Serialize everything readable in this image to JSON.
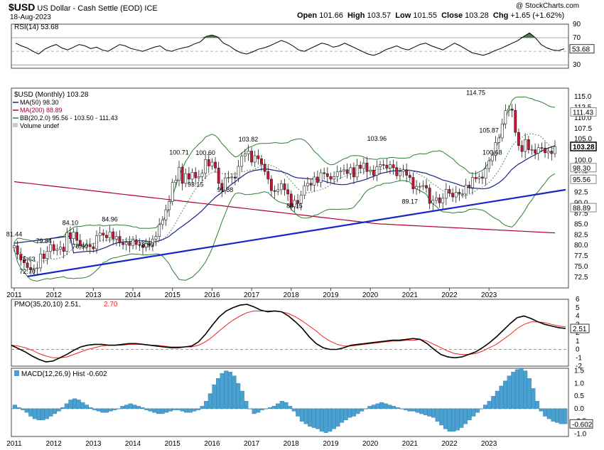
{
  "header": {
    "symbol": "$USD",
    "name": "US Dollar - Cash Settle (EOD)",
    "exchange": "ICE",
    "date": "18-Aug-2023",
    "open_label": "Open",
    "open": "101.66",
    "high_label": "High",
    "high": "103.57",
    "low_label": "Low",
    "low": "101.55",
    "close_label": "Close",
    "close": "103.28",
    "chg_label": "Chg",
    "chg": "+1.65 (+1.62%)",
    "watermark": "@ StockCharts.com"
  },
  "colors": {
    "up_candle": "#ffffff",
    "down_candle": "#cc1133",
    "ma50": "#1a237e",
    "ma200": "#b0002a",
    "bb": "#2e7d32",
    "trendline": "#1525c8",
    "rsi_fill": "#4f7a4f",
    "pmo": "#000000",
    "pmo_signal": "#ee2222",
    "hist": "#4aa0d0"
  },
  "chart_data": [
    {
      "panel": "rsi",
      "type": "line",
      "legend": "RSI(14) 53.68",
      "last_value": "53.68",
      "ylim": [
        25,
        90
      ],
      "reference_lines": [
        30,
        70
      ],
      "y_ticks": [
        "90",
        "70",
        "50",
        "30"
      ],
      "series": [
        {
          "values": [
            62,
            58,
            55,
            50,
            46,
            53,
            57,
            60,
            55,
            52,
            56,
            60,
            58,
            54,
            56,
            52,
            50,
            55,
            60,
            58,
            54,
            52,
            50,
            53,
            56,
            58,
            52,
            50,
            53,
            55,
            57,
            61,
            64,
            72,
            74,
            71,
            62,
            58,
            52,
            48,
            46,
            49,
            53,
            55,
            58,
            62,
            66,
            63,
            58,
            52,
            50,
            54,
            58,
            62,
            60,
            56,
            58,
            62,
            58,
            54,
            50,
            46,
            44,
            47,
            52,
            55,
            58,
            54,
            52,
            56,
            60,
            62,
            58,
            55,
            52,
            57,
            62,
            58,
            53,
            48,
            46,
            44,
            47,
            51,
            54,
            58,
            62,
            66,
            72,
            77,
            70,
            60,
            55,
            52,
            51,
            53.68
          ]
        }
      ]
    },
    {
      "panel": "price",
      "type": "candlestick",
      "legend": [
        "$USD (Monthly) 103.28",
        "MA(50) 98.30",
        "MA(200) 88.89",
        "BB(20,2.0) 95.56 - 103.50 - 111.43",
        "Volume undef"
      ],
      "x_labels": [
        "2011",
        "2012",
        "2013",
        "2014",
        "2015",
        "2016",
        "2017",
        "2018",
        "2019",
        "2020",
        "2021",
        "2022",
        "2023"
      ],
      "ylim": [
        70,
        117
      ],
      "y_ticks": [
        "115.0",
        "112.5",
        "110.0",
        "107.5",
        "105.0",
        "100.0",
        "97.5",
        "92.5",
        "90.0",
        "87.5",
        "85.0",
        "82.5",
        "80.0",
        "77.5",
        "75.0",
        "72.5"
      ],
      "close": [
        79.9,
        77.9,
        76.6,
        75.9,
        74.8,
        74.3,
        74.6,
        74.7,
        78.0,
        76.9,
        78.6,
        80.2,
        78.8,
        79.1,
        79.6,
        78.6,
        83.0,
        81.6,
        83.1,
        81.2,
        79.9,
        79.9,
        80.2,
        79.7,
        79.2,
        82.3,
        82.9,
        82.4,
        81.8,
        83.2,
        81.5,
        82.1,
        80.6,
        80.2,
        80.7,
        80.0,
        81.3,
        80.2,
        80.1,
        79.5,
        80.4,
        80.0,
        81.5,
        82.1,
        84.9,
        86.0,
        88.4,
        90.3,
        94.8,
        95.3,
        98.4,
        94.6,
        96.9,
        95.6,
        97.2,
        95.9,
        96.2,
        97.0,
        100.2,
        98.7,
        99.6,
        98.2,
        94.6,
        93.0,
        95.9,
        96.0,
        96.1,
        95.8,
        98.6,
        101.0,
        101.5,
        102.2,
        99.6,
        101.1,
        100.4,
        99.1,
        97.4,
        95.6,
        92.9,
        92.7,
        93.1,
        94.5,
        93.1,
        92.1,
        89.1,
        90.6,
        89.9,
        91.8,
        94.0,
        94.6,
        94.2,
        96.1,
        94.8,
        97.1,
        96.9,
        96.2,
        95.6,
        96.2,
        97.3,
        97.5,
        97.8,
        96.9,
        98.3,
        96.1,
        98.9,
        98.1,
        99.4,
        97.4,
        97.7,
        96.5,
        98.5,
        99.0,
        98.9,
        98.2,
        99.0,
        98.3,
        96.4,
        97.4,
        97.8,
        96.5,
        96.0,
        93.3,
        93.9,
        93.9,
        94.1,
        93.5,
        89.9,
        90.6,
        91.2,
        90.0,
        91.1,
        93.2,
        92.3,
        91.4,
        92.5,
        92.1,
        92.1,
        94.2,
        93.6,
        96.0,
        95.7,
        96.1,
        95.8,
        98.1,
        99.9,
        101.2,
        104.2,
        105.3,
        108.6,
        111.7,
        112.1,
        111.8,
        106.6,
        103.5,
        102.1,
        104.9,
        102.5,
        102.5,
        101.7,
        103.0,
        102.9,
        101.8,
        102.2,
        101.6,
        103.28
      ],
      "candles_note": "monthly OHLC; highs/lows span roughly ±1.5 around open/close",
      "annotations": [
        {
          "label": "81.44",
          "x": "2011-01",
          "y": 81.44
        },
        {
          "label": "75.63",
          "x": "2011-05",
          "y": 75.63
        },
        {
          "label": "72.70",
          "x": "2011-05",
          "y": 72.7
        },
        {
          "label": "79.84",
          "x": "2011-10",
          "y": 79.84
        },
        {
          "label": "84.10",
          "x": "2012-06",
          "y": 84.1
        },
        {
          "label": "78.60",
          "x": "2012-09",
          "y": 78.6
        },
        {
          "label": "84.96",
          "x": "2013-06",
          "y": 84.96
        },
        {
          "label": "78.93",
          "x": "2014-05",
          "y": 78.93
        },
        {
          "label": "100.71",
          "x": "2015-03",
          "y": 100.71
        },
        {
          "label": "93.15",
          "x": "2015-08",
          "y": 93.15
        },
        {
          "label": "100.60",
          "x": "2015-11",
          "y": 100.6
        },
        {
          "label": "91.88",
          "x": "2016-05",
          "y": 91.88
        },
        {
          "label": "103.82",
          "x": "2016-12",
          "y": 103.82
        },
        {
          "label": "88.15",
          "x": "2018-02",
          "y": 88.15
        },
        {
          "label": "103.96",
          "x": "2020-03",
          "y": 103.96
        },
        {
          "label": "89.17",
          "x": "2021-01",
          "y": 89.17
        },
        {
          "label": "114.75",
          "x": "2022-09",
          "y": 114.75
        },
        {
          "label": "105.87",
          "x": "2023-01",
          "y": 105.87
        },
        {
          "label": "100.68",
          "x": "2023-02",
          "y": 100.68
        }
      ],
      "right_labels": [
        "111.43",
        "103.28",
        "98.30",
        "95.56",
        "88.89"
      ]
    },
    {
      "panel": "pmo",
      "type": "line",
      "legend": "PMO(35,20,10) 2.51, 2.70",
      "ylim": [
        -2,
        6
      ],
      "y_ticks": [
        "6",
        "5",
        "4",
        "3",
        "2",
        "1",
        "0",
        "-1",
        "-2"
      ],
      "right_label": "2.51",
      "series": [
        {
          "values": [
            0.5,
            0.1,
            -0.3,
            -0.8,
            -1.2,
            -1.5,
            -1.4,
            -1.0,
            -0.6,
            -0.1,
            0.3,
            0.5,
            0.6,
            0.6,
            0.5,
            0.5,
            0.6,
            0.7,
            0.7,
            0.6,
            0.5,
            0.4,
            0.3,
            0.2,
            0.2,
            0.3,
            0.4,
            0.9,
            1.8,
            2.9,
            3.9,
            4.6,
            5.0,
            5.3,
            5.4,
            5.1,
            4.7,
            4.5,
            4.6,
            4.5,
            4.0,
            3.3,
            2.5,
            1.5,
            0.7,
            0.2,
            0.0,
            0.0,
            0.2,
            0.5,
            0.6,
            0.7,
            0.8,
            0.9,
            1.0,
            1.1,
            1.1,
            1.2,
            1.3,
            1.2,
            0.7,
            0.0,
            -0.6,
            -0.9,
            -1.0,
            -0.9,
            -0.6,
            -0.3,
            0.2,
            0.8,
            1.5,
            2.3,
            3.1,
            3.8,
            4.0,
            3.7,
            3.3,
            3.0,
            2.8,
            2.6,
            2.51
          ]
        },
        {
          "values": [
            0.5,
            0.4,
            0.2,
            -0.1,
            -0.5,
            -0.8,
            -1.0,
            -1.0,
            -0.9,
            -0.6,
            -0.3,
            0.0,
            0.2,
            0.4,
            0.5,
            0.5,
            0.5,
            0.6,
            0.6,
            0.6,
            0.5,
            0.5,
            0.4,
            0.3,
            0.3,
            0.3,
            0.3,
            0.5,
            0.9,
            1.5,
            2.2,
            2.9,
            3.5,
            4.0,
            4.4,
            4.6,
            4.6,
            4.6,
            4.6,
            4.5,
            4.3,
            3.9,
            3.4,
            2.8,
            2.2,
            1.5,
            1.0,
            0.6,
            0.4,
            0.4,
            0.5,
            0.6,
            0.7,
            0.8,
            0.9,
            1.0,
            1.0,
            1.1,
            1.1,
            1.2,
            1.0,
            0.6,
            0.2,
            -0.2,
            -0.5,
            -0.6,
            -0.6,
            -0.5,
            -0.2,
            0.2,
            0.6,
            1.2,
            1.8,
            2.5,
            3.0,
            3.3,
            3.3,
            3.2,
            3.0,
            2.8,
            2.7
          ]
        }
      ]
    },
    {
      "panel": "macd",
      "type": "bar",
      "legend": "MACD(12,26,9) Hist -0.602",
      "ylim": [
        -1.1,
        1.6
      ],
      "y_ticks": [
        "1.5",
        "1.0",
        "0.5",
        "0.0",
        "-0.5",
        "-1.0"
      ],
      "right_label": "-0.602",
      "x_labels": [
        "2011",
        "2012",
        "2013",
        "2014",
        "2015",
        "2016",
        "2017",
        "2018",
        "2019",
        "2020",
        "2021",
        "2022",
        "2023"
      ],
      "values": [
        0.15,
        0.05,
        -0.05,
        -0.15,
        -0.3,
        -0.4,
        -0.45,
        -0.45,
        -0.4,
        -0.3,
        -0.2,
        -0.1,
        0.05,
        0.2,
        0.35,
        0.4,
        0.35,
        0.25,
        0.15,
        0.05,
        -0.05,
        -0.1,
        -0.15,
        -0.15,
        -0.1,
        -0.05,
        0.0,
        0.1,
        0.15,
        0.2,
        0.15,
        0.1,
        0.05,
        -0.05,
        -0.1,
        -0.15,
        -0.2,
        -0.2,
        -0.15,
        -0.1,
        -0.05,
        -0.05,
        -0.1,
        -0.15,
        -0.15,
        -0.1,
        -0.05,
        0.1,
        0.3,
        0.6,
        0.95,
        1.2,
        1.4,
        1.5,
        1.45,
        1.3,
        1.0,
        0.7,
        0.3,
        0.0,
        -0.2,
        -0.15,
        -0.05,
        0.0,
        0.05,
        0.1,
        0.2,
        0.3,
        0.25,
        0.1,
        -0.1,
        -0.3,
        -0.5,
        -0.6,
        -0.7,
        -0.75,
        -0.8,
        -0.9,
        -0.95,
        -0.9,
        -0.8,
        -0.7,
        -0.55,
        -0.45,
        -0.35,
        -0.3,
        -0.2,
        -0.1,
        0.0,
        0.1,
        0.15,
        0.2,
        0.25,
        0.2,
        0.15,
        0.1,
        0.05,
        0.0,
        -0.05,
        -0.1,
        -0.1,
        -0.15,
        -0.2,
        -0.25,
        -0.3,
        -0.35,
        -0.5,
        -0.65,
        -0.8,
        -0.9,
        -0.9,
        -0.85,
        -0.75,
        -0.6,
        -0.45,
        -0.3,
        -0.15,
        0.0,
        0.15,
        0.3,
        0.5,
        0.7,
        0.9,
        1.1,
        1.3,
        1.45,
        1.55,
        1.6,
        1.5,
        1.2,
        0.8,
        0.3,
        -0.1,
        -0.3,
        -0.4,
        -0.5,
        -0.55,
        -0.6,
        -0.602
      ]
    }
  ]
}
